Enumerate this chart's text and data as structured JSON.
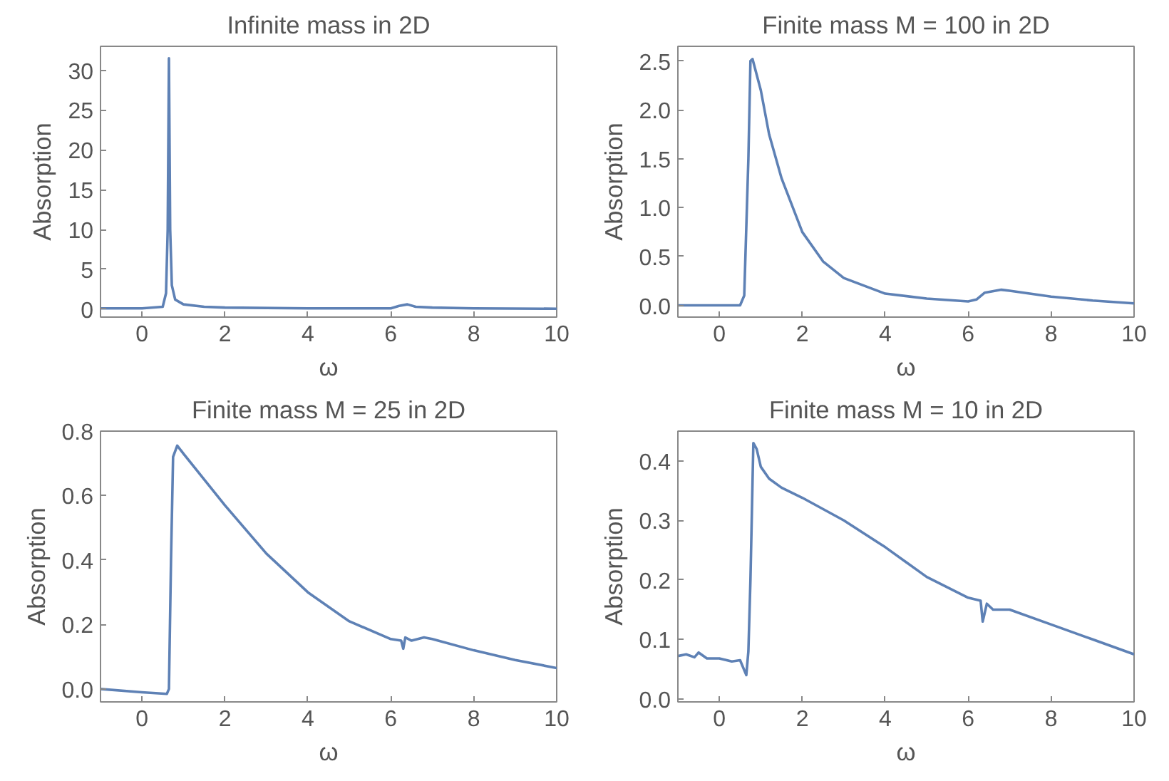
{
  "chart_data": [
    {
      "type": "line",
      "title": "Infinite mass in 2D",
      "xlabel": "ω",
      "ylabel": "Absorption",
      "xlim": [
        -1,
        10
      ],
      "ylim": [
        -1,
        33
      ],
      "xticks": [
        0,
        2,
        4,
        6,
        8,
        10
      ],
      "yticks": [
        0,
        5,
        10,
        15,
        20,
        25,
        30
      ],
      "x": [
        -1,
        0,
        0.5,
        0.58,
        0.62,
        0.65,
        0.68,
        0.72,
        0.8,
        1,
        1.5,
        2,
        4,
        6,
        6.2,
        6.4,
        6.6,
        7,
        8,
        10
      ],
      "series": [
        {
          "color": "#5e81b5",
          "values": [
            0.1,
            0.1,
            0.3,
            2,
            10,
            31.5,
            10,
            3,
            1.2,
            0.6,
            0.3,
            0.2,
            0.1,
            0.1,
            0.4,
            0.6,
            0.3,
            0.2,
            0.1,
            0.05
          ]
        }
      ]
    },
    {
      "type": "line",
      "title": "Finite mass M = 100 in 2D",
      "xlabel": "ω",
      "ylabel": "Absorption",
      "xlim": [
        -1,
        10
      ],
      "ylim": [
        -0.12,
        2.65
      ],
      "xticks": [
        0,
        2,
        4,
        6,
        8,
        10
      ],
      "yticks": [
        {
          "value": 0,
          "label": "0.0"
        },
        0.5,
        {
          "value": 1,
          "label": "1.0"
        },
        1.5,
        {
          "value": 2,
          "label": "2.0"
        },
        2.5
      ],
      "x": [
        -1,
        0.5,
        0.6,
        0.7,
        0.75,
        0.8,
        1,
        1.2,
        1.5,
        2,
        2.5,
        3,
        4,
        5,
        6,
        6.2,
        6.4,
        6.8,
        7,
        8,
        9,
        10
      ],
      "series": [
        {
          "color": "#5e81b5",
          "values": [
            0,
            0,
            0.1,
            1.5,
            2.5,
            2.52,
            2.2,
            1.75,
            1.3,
            0.75,
            0.45,
            0.28,
            0.12,
            0.07,
            0.04,
            0.06,
            0.13,
            0.16,
            0.15,
            0.09,
            0.05,
            0.02
          ]
        }
      ]
    },
    {
      "type": "line",
      "title": "Finite mass M = 25 in 2D",
      "xlabel": "ω",
      "ylabel": "Absorption",
      "xlim": [
        -1,
        10
      ],
      "ylim": [
        -0.04,
        0.8
      ],
      "xticks": [
        0,
        2,
        4,
        6,
        8,
        10
      ],
      "yticks": [
        {
          "value": 0,
          "label": "0.0"
        },
        0.2,
        0.4,
        0.6,
        0.8
      ],
      "x": [
        -1,
        0,
        0.6,
        0.65,
        0.7,
        0.75,
        0.85,
        1,
        1.5,
        2,
        3,
        4,
        5,
        6,
        6.25,
        6.3,
        6.35,
        6.5,
        6.8,
        7,
        8,
        9,
        10
      ],
      "series": [
        {
          "color": "#5e81b5",
          "values": [
            0,
            -0.01,
            -0.015,
            0,
            0.4,
            0.72,
            0.755,
            0.73,
            0.65,
            0.57,
            0.42,
            0.3,
            0.21,
            0.155,
            0.15,
            0.125,
            0.16,
            0.15,
            0.16,
            0.155,
            0.12,
            0.09,
            0.065
          ]
        }
      ]
    },
    {
      "type": "line",
      "title": "Finite mass M = 10 in 2D",
      "xlabel": "ω",
      "ylabel": "Absorption",
      "xlim": [
        -1,
        10
      ],
      "ylim": [
        -0.005,
        0.45
      ],
      "xticks": [
        0,
        2,
        4,
        6,
        8,
        10
      ],
      "yticks": [
        {
          "value": 0,
          "label": "0.0"
        },
        0.1,
        0.2,
        0.3,
        0.4
      ],
      "x": [
        -1,
        -0.8,
        -0.6,
        -0.5,
        -0.3,
        0,
        0.3,
        0.5,
        0.65,
        0.7,
        0.75,
        0.82,
        0.9,
        1,
        1.2,
        1.5,
        2,
        3,
        4,
        5,
        6,
        6.3,
        6.35,
        6.45,
        6.6,
        7,
        8,
        9,
        10
      ],
      "series": [
        {
          "color": "#5e81b5",
          "values": [
            0.072,
            0.075,
            0.07,
            0.078,
            0.068,
            0.068,
            0.063,
            0.065,
            0.04,
            0.08,
            0.2,
            0.43,
            0.42,
            0.39,
            0.37,
            0.355,
            0.338,
            0.3,
            0.255,
            0.205,
            0.17,
            0.165,
            0.13,
            0.16,
            0.15,
            0.15,
            0.125,
            0.1,
            0.075
          ]
        }
      ]
    }
  ]
}
